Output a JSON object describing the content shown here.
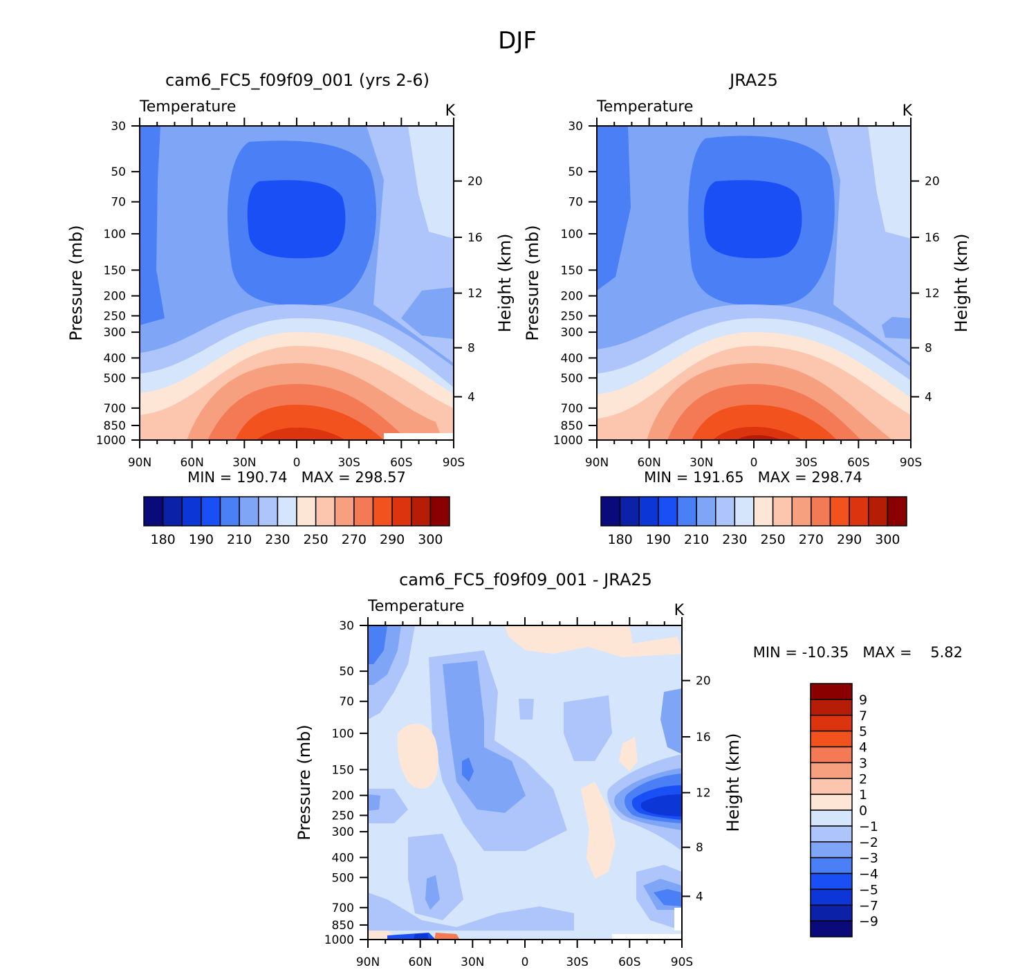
{
  "title": "DJF",
  "colors": {
    "abs_scale": [
      "#0a0a7a",
      "#0b21a8",
      "#0d36d6",
      "#1a4ff5",
      "#4a7ff5",
      "#7fa5f7",
      "#adc5fa",
      "#d5e5fb",
      "#fde6d6",
      "#fbc6ad",
      "#f7a080",
      "#f37a55",
      "#f1521e",
      "#dd3410",
      "#b51d06",
      "#8a0000"
    ],
    "diff_scale": [
      "#0a0a7a",
      "#0b21a8",
      "#0d36d6",
      "#1a4ff5",
      "#4a7ff5",
      "#7fa5f7",
      "#adc5fa",
      "#d5e5fb",
      "#fde6d6",
      "#fbc6ad",
      "#f7a080",
      "#f37a55",
      "#f1521e",
      "#dd3410",
      "#b51d06",
      "#8a0000"
    ]
  },
  "chart_data": [
    {
      "type": "heatmap",
      "title": "cam6_FC5_f09f09_001 (yrs 2-6)",
      "field_label": "Temperature",
      "units": "K",
      "xlabel": "",
      "ylabel": "Pressure (mb)",
      "y2label": "Height (km)",
      "x_ticks": [
        "90N",
        "60N",
        "30N",
        "0",
        "30S",
        "60S",
        "90S"
      ],
      "y_ticks": [
        "30",
        "50",
        "70",
        "100",
        "150",
        "200",
        "250",
        "300",
        "400",
        "500",
        "700",
        "850",
        "1000"
      ],
      "y2_ticks": [
        "20",
        "16",
        "12",
        "8",
        "4"
      ],
      "stats": "MIN = 190.74   MAX = 298.57",
      "colorbar_labels": [
        "180",
        "190",
        "210",
        "230",
        "250",
        "270",
        "290",
        "300"
      ]
    },
    {
      "type": "heatmap",
      "title": "JRA25",
      "field_label": "Temperature",
      "units": "K",
      "xlabel": "",
      "ylabel": "Pressure (mb)",
      "y2label": "Height (km)",
      "x_ticks": [
        "90N",
        "60N",
        "30N",
        "0",
        "30S",
        "60S",
        "90S"
      ],
      "y_ticks": [
        "30",
        "50",
        "70",
        "100",
        "150",
        "200",
        "250",
        "300",
        "400",
        "500",
        "700",
        "850",
        "1000"
      ],
      "y2_ticks": [
        "20",
        "16",
        "12",
        "8",
        "4"
      ],
      "stats": "MIN = 191.65   MAX = 298.74",
      "colorbar_labels": [
        "180",
        "190",
        "210",
        "230",
        "250",
        "270",
        "290",
        "300"
      ]
    },
    {
      "type": "heatmap",
      "title": "cam6_FC5_f09f09_001 - JRA25",
      "field_label": "Temperature",
      "units": "K",
      "xlabel": "",
      "ylabel": "Pressure (mb)",
      "y2label": "Height (km)",
      "x_ticks": [
        "90N",
        "60N",
        "30N",
        "0",
        "30S",
        "60S",
        "90S"
      ],
      "y_ticks": [
        "30",
        "50",
        "70",
        "100",
        "150",
        "200",
        "250",
        "300",
        "400",
        "500",
        "700",
        "850",
        "1000"
      ],
      "y2_ticks": [
        "20",
        "16",
        "12",
        "8",
        "4"
      ],
      "stats": "MIN = -10.35   MAX =    5.82",
      "colorbar_labels": [
        "9",
        "7",
        "5",
        "4",
        "3",
        "2",
        "1",
        "0",
        "-1",
        "-2",
        "-3",
        "-4",
        "-5",
        "-7",
        "-9"
      ]
    }
  ]
}
